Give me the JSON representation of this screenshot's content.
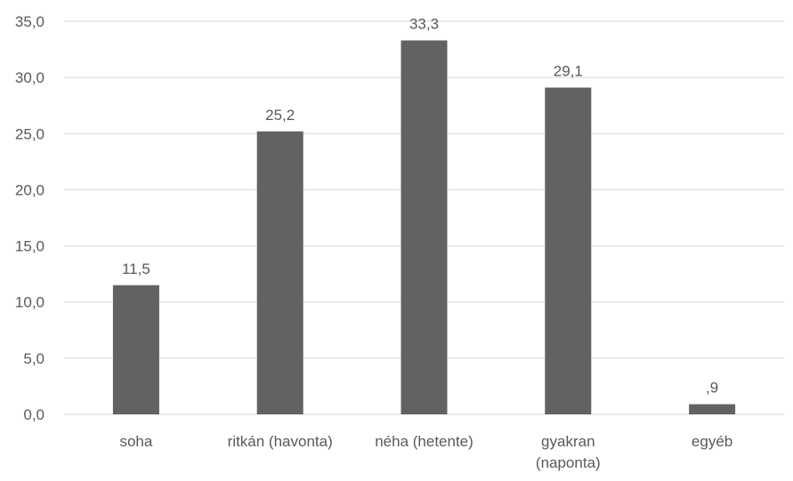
{
  "chart_data": {
    "type": "bar",
    "title": "",
    "xlabel": "",
    "ylabel": "",
    "categories": [
      "soha",
      "ritkán (havonta)",
      "néha (hetente)",
      "gyakran (naponta)",
      "egyéb"
    ],
    "category_label_lines": [
      [
        "soha"
      ],
      [
        "ritkán (havonta)"
      ],
      [
        "néha (hetente)"
      ],
      [
        "gyakran",
        "(naponta)"
      ],
      [
        "egyéb"
      ]
    ],
    "values": [
      11.5,
      25.2,
      33.3,
      29.1,
      0.9
    ],
    "data_labels": [
      "11,5",
      "25,2",
      "33,3",
      "29,1",
      ",9"
    ],
    "ylim": [
      0,
      35
    ],
    "y_ticks": [
      0,
      5,
      10,
      15,
      20,
      25,
      30,
      35
    ],
    "y_tick_labels": [
      "0,0",
      "5,0",
      "10,0",
      "15,0",
      "20,0",
      "25,0",
      "30,0",
      "35,0"
    ],
    "grid": true,
    "legend": "none",
    "bar_color": "#626262",
    "grid_color": "#d9d9d9",
    "text_color": "#595959"
  }
}
